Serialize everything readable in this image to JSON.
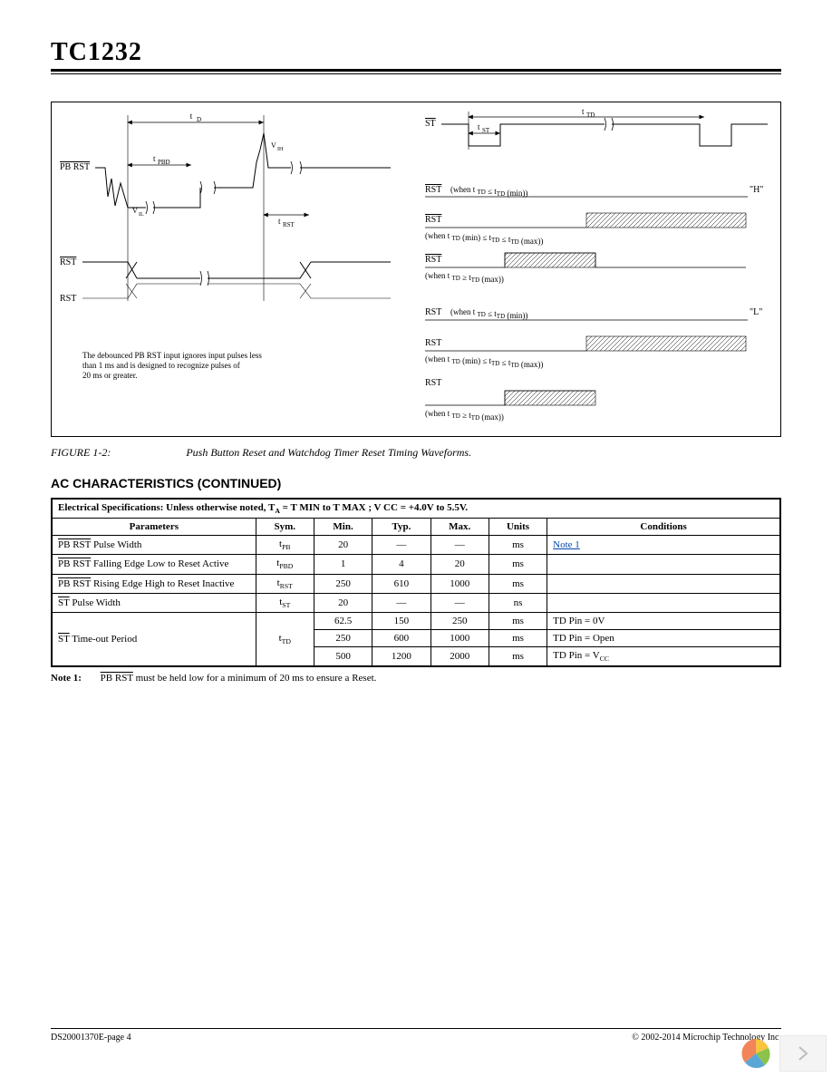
{
  "header": {
    "part_number": "TC1232"
  },
  "figure": {
    "label": "FIGURE 1-2:",
    "caption": "Push Button Reset and Watchdog Timer Reset Timing Waveforms.",
    "left": {
      "pbrst_label": "PB RST",
      "rst_label": "RST",
      "rst_bar_label": "RST",
      "t_d": "tD",
      "t_pbd": "tPBD",
      "t_rst": "tRST",
      "vil": "VIL",
      "vih": "VIH",
      "note_l1": "The debounced PB RST input ignores input pulses less",
      "note_l2": "than 1 ms and is designed to recognize pulses of",
      "note_l3": "20 ms or greater."
    },
    "right": {
      "st_label": "ST",
      "t_td": "tTD",
      "t_st": "tST",
      "rst_bar_label": "RST",
      "rst_label": "RST",
      "case1": "(when t    TD ≤ tTD (min))",
      "case2": "(when t  TD (min) ≤ tTD ≤ tTD (max))",
      "case3": "(when t  TD ≥ tTD (max))",
      "case1b": "(when t    TD ≤ tTD (min))",
      "case2b": "(when t  TD (min) ≤ tTD ≤ tTD (max))",
      "case3b": "(when t  TD ≥ tTD (max))",
      "level_h": "\"H\"",
      "level_l": "\"L\""
    }
  },
  "section_title": "AC CHARACTERISTICS (CONTINUED)",
  "spec_header": {
    "prefix": "Electrical Specifications:",
    "text": " Unless otherwise noted, T",
    "suffix": " = T MIN  to T MAX ; V CC  = +4.0V to 5.5V.",
    "subA": "A"
  },
  "columns": {
    "parameters": "Parameters",
    "sym": "Sym.",
    "min": "Min.",
    "typ": "Typ.",
    "max": "Max.",
    "units": "Units",
    "conditions": "Conditions"
  },
  "rows": [
    {
      "param": "PB RST Pulse Width",
      "overbar": true,
      "sym": "tPB",
      "min": "20",
      "typ": "—",
      "max": "—",
      "units": "ms",
      "cond": "Note 1",
      "cond_link": true
    },
    {
      "param": "PB RST Falling Edge Low to Reset Active",
      "overbar": true,
      "sym": "tPBD",
      "min": "1",
      "typ": "4",
      "max": "20",
      "units": "ms",
      "cond": ""
    },
    {
      "param": "PB RST Rising Edge High to Reset Inactive",
      "overbar": true,
      "sym": "tRST",
      "min": "250",
      "typ": "610",
      "max": "1000",
      "units": "ms",
      "cond": ""
    },
    {
      "param": "ST Pulse Width",
      "overbar": true,
      "sym": "tST",
      "min": "20",
      "typ": "—",
      "max": "—",
      "units": "ns",
      "cond": ""
    },
    {
      "param": "ST Time-out Period",
      "overbar": true,
      "sym": "tTD",
      "min": "62.5",
      "typ": "150",
      "max": "250",
      "units": "ms",
      "cond": "TD Pin = 0V",
      "rowspan_param": 3
    },
    {
      "param": "",
      "sym": "",
      "min": "250",
      "typ": "600",
      "max": "1000",
      "units": "ms",
      "cond": "TD Pin = Open",
      "continuation": true
    },
    {
      "param": "",
      "sym": "",
      "min": "500",
      "typ": "1200",
      "max": "2000",
      "units": "ms",
      "cond": "TD Pin = V CC",
      "continuation": true
    }
  ],
  "note": {
    "label": "Note 1:",
    "text": "PB RST must be held low for a minimum of 20 ms to ensure a Reset.",
    "overbar_word": "PB RST"
  },
  "footer": {
    "left": "DS20001370E-page 4",
    "right": "© 2002-2014 Microchip Technology Inc."
  }
}
